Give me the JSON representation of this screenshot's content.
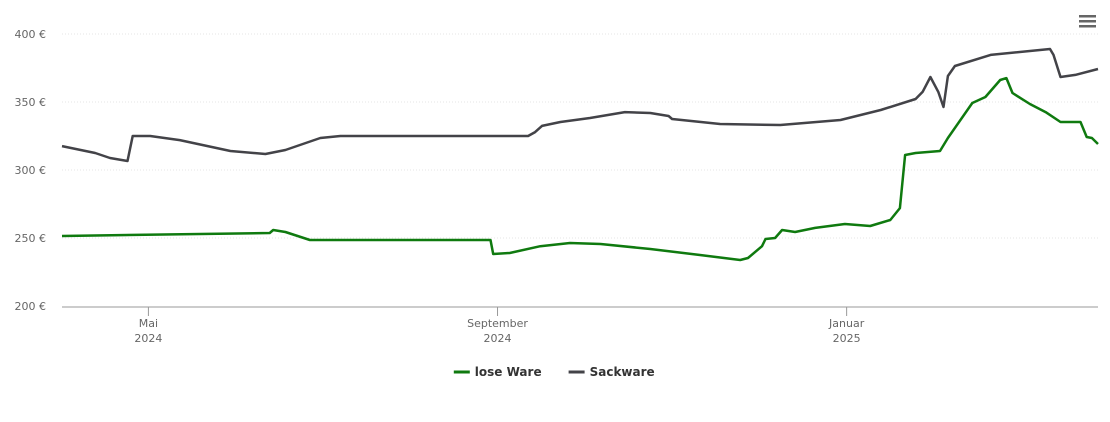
{
  "chart_data": {
    "type": "line",
    "xlim": [
      4.01,
      15.88
    ],
    "xticks": [
      {
        "value": 5,
        "label": "Mai 2024"
      },
      {
        "value": 9,
        "label": "September 2024"
      },
      {
        "value": 13,
        "label": "Januar 2025"
      }
    ],
    "ylim": [
      200,
      400
    ],
    "yticks": [
      {
        "value": 200,
        "label": "200 €"
      },
      {
        "value": 250,
        "label": "250 €"
      },
      {
        "value": 300,
        "label": "300 €"
      },
      {
        "value": 350,
        "label": "350 €"
      },
      {
        "value": 400,
        "label": "400 €"
      }
    ],
    "grid": true,
    "legend": "bottom",
    "series": [
      {
        "name": "lose Ware",
        "color": "#0f7a0f",
        "x": [
          4.01,
          6.39,
          6.43,
          6.57,
          6.85,
          8.92,
          8.95,
          9.14,
          9.49,
          9.83,
          10.18,
          10.75,
          11.32,
          11.78,
          11.87,
          12.03,
          12.07,
          12.18,
          12.26,
          12.41,
          12.64,
          12.98,
          13.27,
          13.5,
          13.61,
          13.67,
          13.79,
          14.07,
          14.16,
          14.44,
          14.59,
          14.76,
          14.83,
          14.9,
          15.1,
          15.28,
          15.45,
          15.68,
          15.75,
          15.81,
          15.88
        ],
        "values": [
          251.5,
          253.7,
          255.9,
          254.4,
          248.5,
          248.5,
          238.2,
          239,
          244,
          246.3,
          245.6,
          241.9,
          237.5,
          233.8,
          235.3,
          244,
          249.3,
          250,
          255.9,
          254.4,
          257.4,
          260.3,
          258.8,
          263.2,
          272,
          311,
          312.5,
          314,
          323.5,
          349.3,
          353.7,
          366.2,
          367.6,
          356.6,
          348.5,
          342.6,
          335.3,
          335.3,
          324.3,
          323.5,
          319.1
        ]
      },
      {
        "name": "Sackware",
        "color": "#434348",
        "x": [
          4.01,
          4.39,
          4.56,
          4.76,
          4.82,
          5.02,
          5.36,
          5.94,
          6.34,
          6.57,
          6.97,
          7.2,
          9.35,
          9.43,
          9.51,
          9.72,
          10.06,
          10.46,
          10.75,
          10.96,
          11.0,
          11.55,
          12.24,
          12.93,
          13.39,
          13.79,
          13.87,
          13.96,
          14.05,
          14.11,
          14.16,
          14.24,
          14.65,
          15.33,
          15.37,
          15.45,
          15.62,
          15.88
        ],
        "values": [
          317.6,
          312.5,
          308.8,
          306.6,
          325,
          325,
          322,
          314,
          311.8,
          314.7,
          323.5,
          325,
          325,
          327.9,
          332.4,
          335.3,
          338.2,
          342.6,
          341.9,
          339.7,
          337.5,
          333.8,
          333.1,
          336.8,
          344.1,
          352.2,
          357.4,
          368.4,
          357.4,
          346.3,
          369.1,
          376.5,
          384.6,
          389,
          384.6,
          368.4,
          369.9,
          374.3
        ]
      }
    ]
  }
}
